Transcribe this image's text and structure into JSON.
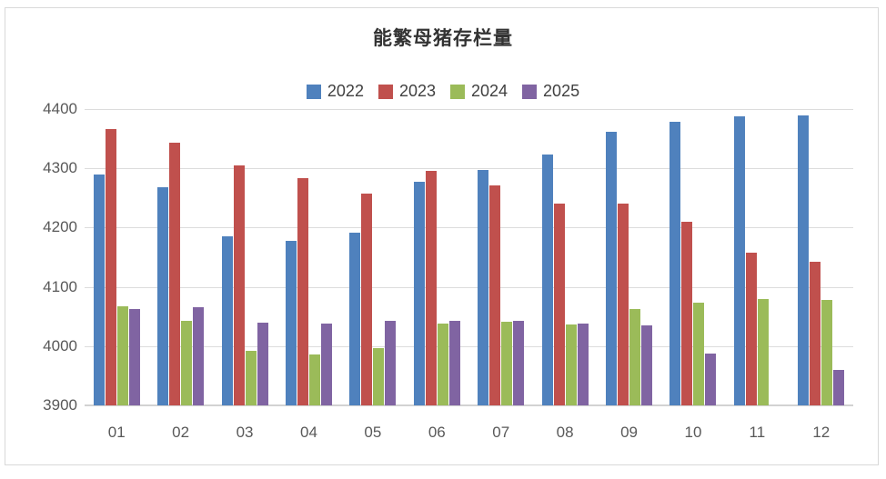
{
  "chart_data": {
    "type": "bar",
    "title": "能繁母猪存栏量",
    "xlabel": "",
    "ylabel": "",
    "categories": [
      "01",
      "02",
      "03",
      "04",
      "05",
      "06",
      "07",
      "08",
      "09",
      "10",
      "11",
      "12"
    ],
    "series": [
      {
        "name": "2022",
        "color": "#4F81BD",
        "values": [
          4290,
          4268,
          4185,
          4177,
          4192,
          4277,
          4298,
          4324,
          4362,
          4379,
          4388,
          4390
        ]
      },
      {
        "name": "2023",
        "color": "#C0504D",
        "values": [
          4367,
          4343,
          4305,
          4284,
          4258,
          4296,
          4271,
          4241,
          4240,
          4210,
          4158,
          4142
        ]
      },
      {
        "name": "2024",
        "color": "#9BBB59",
        "values": [
          4067,
          4042,
          3992,
          3986,
          3996,
          4038,
          4041,
          4036,
          4062,
          4073,
          4080,
          4078
        ]
      },
      {
        "name": "2025",
        "color": "#8064A2",
        "values": [
          4062,
          4066,
          4039,
          4038,
          4042,
          4043,
          4042,
          4038,
          4035,
          3988,
          null,
          3960
        ]
      }
    ],
    "ylim": [
      3900,
      4400
    ],
    "yticks": [
      3900,
      4000,
      4100,
      4200,
      4300,
      4400
    ],
    "grid": true,
    "legend_position": "top",
    "colors": {
      "background": "#FFFFFF",
      "frame_border": "#D9D9D9",
      "gridline": "#DCDCDC",
      "axis_line": "#D2D2D2",
      "tick_text": "#595959",
      "legend_text": "#404040",
      "title_text": "#333333"
    }
  }
}
